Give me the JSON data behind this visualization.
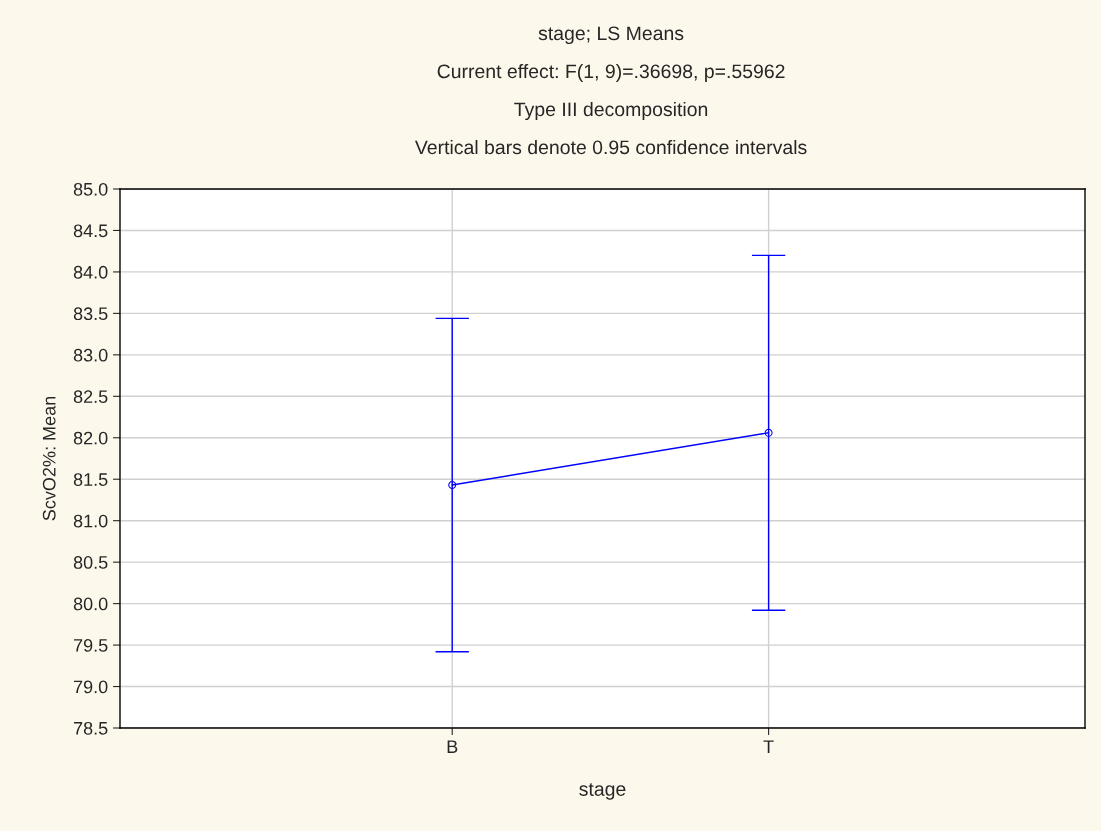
{
  "chart_data": {
    "type": "line",
    "title": "stage; LS Means",
    "subtitle": "Current effect: F(1, 9)=.36698, p=.55962\nType III decomposition\nVertical bars denote 0.95 confidence intervals",
    "xlabel": "stage",
    "ylabel": "ScvO2%: Mean",
    "categories": [
      "B",
      "T"
    ],
    "series": [
      {
        "color": "#0000ff",
        "values": [
          81.43,
          82.06
        ],
        "errors": [
          2.01,
          2.14
        ]
      }
    ],
    "ylim": [
      78.5,
      85.0
    ],
    "yticks": [
      {
        "value": 78.5,
        "label": "78.5"
      },
      {
        "value": 79.0,
        "label": "79.0"
      },
      {
        "value": 79.5,
        "label": "79.5"
      },
      {
        "value": 80.0,
        "label": "80.0"
      },
      {
        "value": 80.5,
        "label": "80.5"
      },
      {
        "value": 81.0,
        "label": "81.0"
      },
      {
        "value": 81.5,
        "label": "81.5"
      },
      {
        "value": 82.0,
        "label": "82.0"
      },
      {
        "value": 82.5,
        "label": "82.5"
      },
      {
        "value": 83.0,
        "label": "83.0"
      },
      {
        "value": 83.5,
        "label": "83.5"
      },
      {
        "value": 84.0,
        "label": "84.0"
      },
      {
        "value": 84.5,
        "label": "84.5"
      },
      {
        "value": 85.0,
        "label": "85.0"
      }
    ],
    "grid": true,
    "marker": "circle",
    "line_style": "solid"
  }
}
